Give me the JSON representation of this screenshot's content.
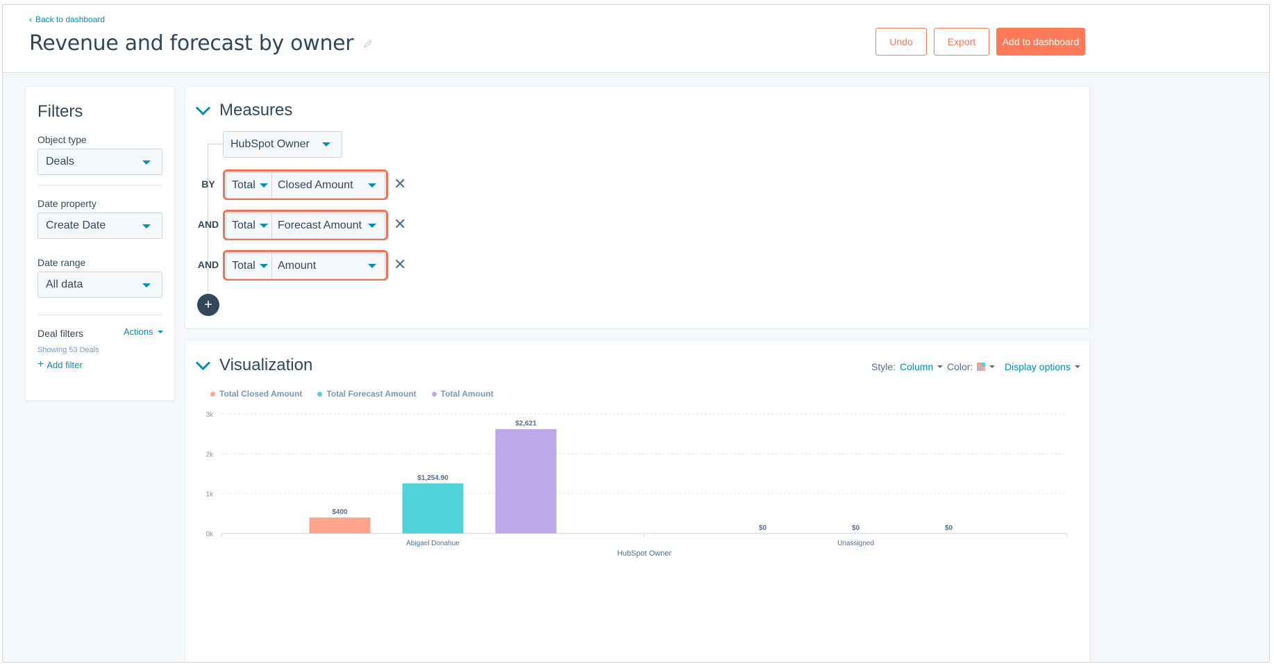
{
  "header": {
    "back_label": "Back to dashboard",
    "title": "Revenue and forecast by owner",
    "undo_label": "Undo",
    "export_label": "Export",
    "add_label": "Add to dashboard"
  },
  "filters": {
    "title": "Filters",
    "object_type_label": "Object type",
    "object_type_value": "Deals",
    "date_property_label": "Date property",
    "date_property_value": "Create Date",
    "date_range_label": "Date range",
    "date_range_value": "All data",
    "deal_filters_label": "Deal filters",
    "actions_label": "Actions",
    "showing_label": "Showing 53 Deals",
    "add_filter_label": "Add filter"
  },
  "measures": {
    "title": "Measures",
    "dimension_value": "HubSpot Owner",
    "rows": [
      {
        "conj": "BY",
        "agg": "Total",
        "prop": "Closed Amount"
      },
      {
        "conj": "AND",
        "agg": "Total",
        "prop": "Forecast Amount"
      },
      {
        "conj": "AND",
        "agg": "Total",
        "prop": "Amount"
      }
    ],
    "remove_icon": "close-icon",
    "add_icon": "plus-icon"
  },
  "visualization": {
    "title": "Visualization",
    "style_label": "Style:",
    "style_value": "Column",
    "color_label": "Color:",
    "display_options_label": "Display options"
  },
  "colors": {
    "accent": "#0091ae",
    "primary_button": "#ff7a59",
    "highlight": "#ef7355",
    "series_closed": "#fea58e",
    "series_forecast": "#51d3d9",
    "series_amount": "#bda9ea"
  },
  "chart_data": {
    "type": "bar",
    "categories": [
      "Abigael Donahue",
      "Unassigned"
    ],
    "series": [
      {
        "name": "Total Closed Amount",
        "values": [
          400,
          0
        ],
        "labels": [
          "$400",
          "$0"
        ],
        "color": "#fea58e"
      },
      {
        "name": "Total Forecast Amount",
        "values": [
          1254.9,
          0
        ],
        "labels": [
          "$1,254.90",
          "$0"
        ],
        "color": "#51d3d9"
      },
      {
        "name": "Total Amount",
        "values": [
          2621,
          0
        ],
        "labels": [
          "$2,621",
          "$0"
        ],
        "color": "#bda9ea"
      }
    ],
    "xlabel": "HubSpot Owner",
    "ylabel": "",
    "ylim": [
      0,
      3000
    ],
    "yticks": [
      0,
      1000,
      2000,
      3000
    ],
    "ytick_labels": [
      "0k",
      "1k",
      "2k",
      "3k"
    ],
    "grid": true,
    "legend": "top-left"
  }
}
